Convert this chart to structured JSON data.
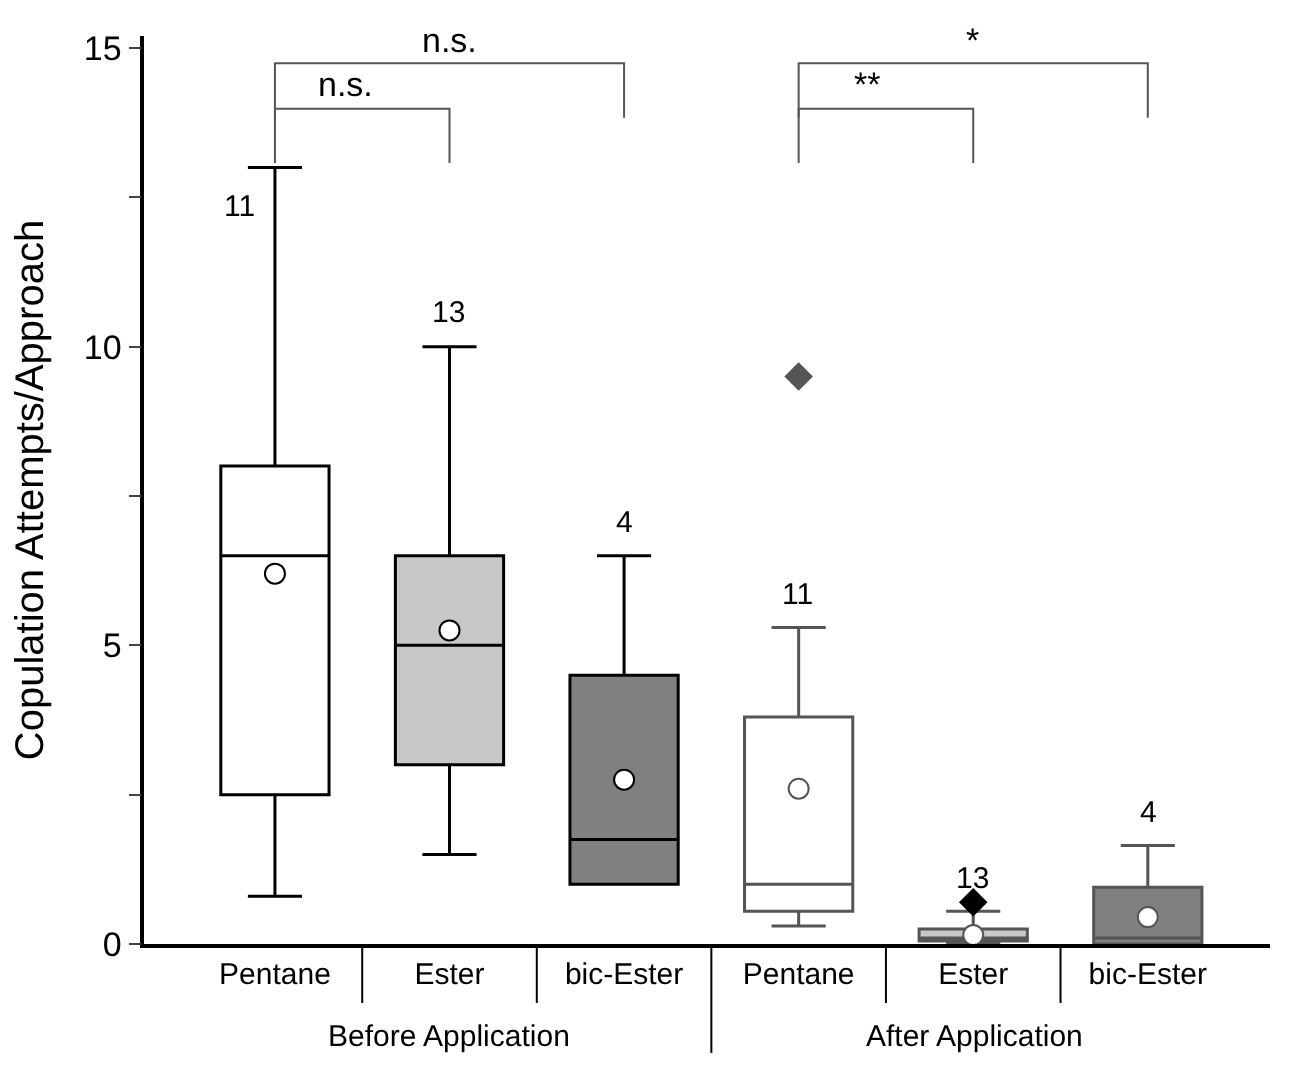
{
  "chart_data": {
    "type": "box",
    "ylabel": "Copulation Attempts/Approach",
    "categories": [
      "Pentane",
      "Ester",
      "bic-Ester",
      "Pentane",
      "Ester",
      "bic-Ester"
    ],
    "boxes": [
      {
        "low": 0.8,
        "q1": 2.5,
        "median": 6.5,
        "q3": 8,
        "high": 13,
        "mean": 6.2
      },
      {
        "low": 1.5,
        "q1": 3,
        "median": 5,
        "q3": 6.5,
        "high": 10,
        "mean": 5.25
      },
      {
        "low": 1,
        "q1": 1,
        "median": 1.75,
        "q3": 4.5,
        "high": 6.5,
        "mean": 2.75
      },
      {
        "low": 0.3,
        "q1": 0.55,
        "median": 1,
        "q3": 3.8,
        "high": 5.3,
        "mean": 2.6,
        "outliers": [
          9.5
        ]
      },
      {
        "low": 0,
        "q1": 0.05,
        "median": 0.1,
        "q3": 0.25,
        "high": 0.55,
        "mean": 0.15,
        "outliers": [
          0.7
        ]
      },
      {
        "low": 0,
        "q1": 0,
        "median": 0.1,
        "q3": 0.95,
        "high": 1.65,
        "mean": 0.45
      }
    ],
    "colors": [
      "#ffffff",
      "#c8c8c8",
      "#808080",
      "#ffffff",
      "#c8c8c8",
      "#808080"
    ],
    "value_labels": [
      "11",
      "13",
      "4",
      "11",
      "13",
      "4"
    ],
    "annotations": [
      "n.s.",
      "n.s.",
      "**",
      "*",
      "Before Application",
      "After Application"
    ],
    "ylim": [
      0,
      15.2
    ],
    "yticks": [
      0,
      {
        "value": 2.5,
        "label": null
      },
      5,
      {
        "value": 7.5,
        "label": null
      },
      10,
      {
        "value": 12.5,
        "label": null
      },
      15
    ],
    "grid": false
  }
}
